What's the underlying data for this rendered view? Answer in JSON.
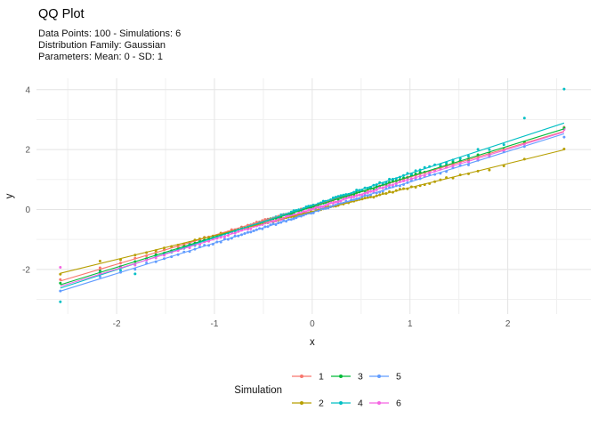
{
  "chart_data": {
    "type": "scatter",
    "title": "QQ Plot",
    "subtitle_lines": [
      "Data Points: 100 - Simulations: 6",
      "Distribution Family: Gaussian",
      "Parameters: Mean: 0 - SD: 1"
    ],
    "xlabel": "x",
    "ylabel": "y",
    "xlim": [
      -2.82,
      2.85
    ],
    "ylim": [
      -3.49,
      4.38
    ],
    "x_major_ticks": [
      -2,
      -1,
      0,
      1,
      2
    ],
    "x_minor_ticks": [
      -2.5,
      -1.5,
      -0.5,
      0.5,
      1.5,
      2.5
    ],
    "y_major_ticks": [
      -2,
      0,
      2,
      4
    ],
    "y_minor_ticks": [
      -3,
      -1,
      1,
      3
    ],
    "grid": "on",
    "background": "#ffffff",
    "grid_major_color": "#e4e4e4",
    "grid_minor_color": "#f0f0f0",
    "tick_label_color": "#555555",
    "points_per_series": 100,
    "theoretical_quantile_range": [
      -2.576,
      2.576
    ],
    "legend": {
      "title": "Simulation",
      "position": "bottom",
      "entries": [
        {
          "label": "1",
          "color": "#F8766D"
        },
        {
          "label": "2",
          "color": "#B79F00"
        },
        {
          "label": "3",
          "color": "#00BA38"
        },
        {
          "label": "4",
          "color": "#00BFC4"
        },
        {
          "label": "5",
          "color": "#619CFF"
        },
        {
          "label": "6",
          "color": "#F564E2"
        }
      ]
    },
    "series": [
      {
        "name": "1",
        "color": "#F8766D",
        "line": {
          "slope": 0.97,
          "intercept": 0.11
        },
        "scatter_model": {
          "seed": 101,
          "base_noise": 0.03,
          "tail_noise": 0.11
        },
        "notable_points": [
          [
            -2.576,
            -2.34
          ]
        ]
      },
      {
        "name": "2",
        "color": "#B79F00",
        "line": {
          "slope": 0.8,
          "intercept": -0.07
        },
        "scatter_model": {
          "seed": 202,
          "base_noise": 0.03,
          "tail_noise": 0.1
        },
        "notable_points": [
          [
            -2.576,
            -2.16
          ],
          [
            2.576,
            2.02
          ]
        ]
      },
      {
        "name": "3",
        "color": "#00BA38",
        "line": {
          "slope": 1.01,
          "intercept": 0.09
        },
        "scatter_model": {
          "seed": 303,
          "base_noise": 0.03,
          "tail_noise": 0.1
        },
        "notable_points": [
          [
            -2.576,
            -2.46
          ],
          [
            2.576,
            2.72
          ]
        ]
      },
      {
        "name": "4",
        "color": "#00BFC4",
        "line": {
          "slope": 1.07,
          "intercept": 0.13
        },
        "scatter_model": {
          "seed": 404,
          "base_noise": 0.035,
          "tail_noise": 0.12
        },
        "notable_points": [
          [
            -2.576,
            -3.08
          ],
          [
            -1.81,
            -2.15
          ],
          [
            2.17,
            3.05
          ],
          [
            2.576,
            4.02
          ]
        ]
      },
      {
        "name": "5",
        "color": "#619CFF",
        "line": {
          "slope": 1.02,
          "intercept": -0.1
        },
        "scatter_model": {
          "seed": 505,
          "base_noise": 0.03,
          "tail_noise": 0.1
        },
        "notable_points": [
          [
            -2.576,
            -2.72
          ]
        ]
      },
      {
        "name": "6",
        "color": "#F564E2",
        "line": {
          "slope": 1.0,
          "intercept": 0.01
        },
        "scatter_model": {
          "seed": 606,
          "base_noise": 0.03,
          "tail_noise": 0.1
        },
        "notable_points": [
          [
            -2.576,
            -1.93
          ],
          [
            2.576,
            2.67
          ]
        ]
      }
    ]
  }
}
